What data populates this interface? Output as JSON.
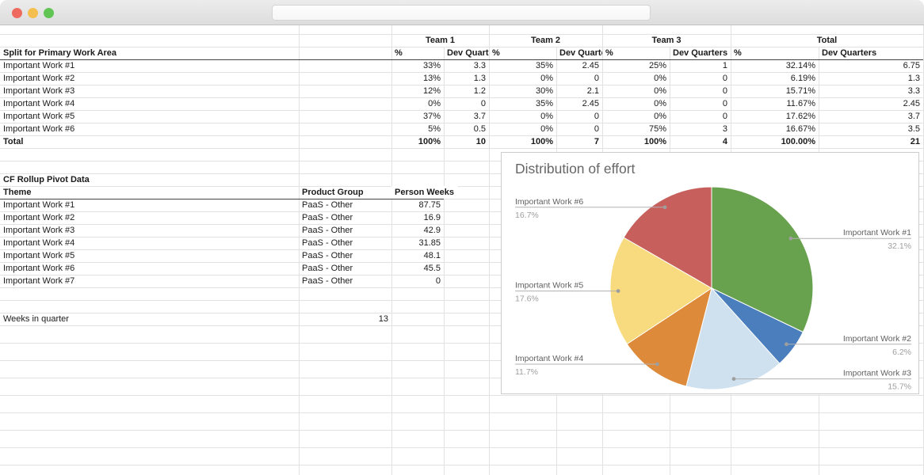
{
  "window": {
    "traffic_lights": {
      "close_color": "#ee6a5e",
      "minimize_color": "#f5bf4f",
      "zoom_color": "#61c554"
    },
    "search_value": ""
  },
  "sheet": {
    "split_table": {
      "row_label_header": "Split for Primary Work Area",
      "teams": [
        "Team 1",
        "Team 2",
        "Team 3",
        "Total"
      ],
      "sub_headers": {
        "pct": "%",
        "dev_quarters": "Dev Quarters"
      },
      "rows": [
        {
          "label": "Important Work #1",
          "cells": [
            "33%",
            "3.3",
            "35%",
            "2.45",
            "25%",
            "1",
            "32.14%",
            "6.75"
          ]
        },
        {
          "label": "Important Work #2",
          "cells": [
            "13%",
            "1.3",
            "0%",
            "0",
            "0%",
            "0",
            "6.19%",
            "1.3"
          ]
        },
        {
          "label": "Important Work #3",
          "cells": [
            "12%",
            "1.2",
            "30%",
            "2.1",
            "0%",
            "0",
            "15.71%",
            "3.3"
          ]
        },
        {
          "label": "Important Work #4",
          "cells": [
            "0%",
            "0",
            "35%",
            "2.45",
            "0%",
            "0",
            "11.67%",
            "2.45"
          ]
        },
        {
          "label": "Important Work #5",
          "cells": [
            "37%",
            "3.7",
            "0%",
            "0",
            "0%",
            "0",
            "17.62%",
            "3.7"
          ]
        },
        {
          "label": "Important Work #6",
          "cells": [
            "5%",
            "0.5",
            "0%",
            "0",
            "75%",
            "3",
            "16.67%",
            "3.5"
          ]
        }
      ],
      "total": {
        "label": "Total",
        "cells": [
          "100%",
          "10",
          "100%",
          "7",
          "100%",
          "4",
          "100.00%",
          "21"
        ]
      }
    },
    "pivot": {
      "section_title": "CF Rollup Pivot Data",
      "headers": [
        "Theme",
        "Product Group",
        "Person Weeks"
      ],
      "rows": [
        {
          "theme": "Important Work #1",
          "group": "PaaS - Other",
          "weeks": "87.75"
        },
        {
          "theme": "Important Work #2",
          "group": "PaaS - Other",
          "weeks": "16.9"
        },
        {
          "theme": "Important Work #3",
          "group": "PaaS - Other",
          "weeks": "42.9"
        },
        {
          "theme": "Important Work #4",
          "group": "PaaS - Other",
          "weeks": "31.85"
        },
        {
          "theme": "Important Work #5",
          "group": "PaaS - Other",
          "weeks": "48.1"
        },
        {
          "theme": "Important Work #6",
          "group": "PaaS - Other",
          "weeks": "45.5"
        },
        {
          "theme": "Important Work #7",
          "group": "PaaS - Other",
          "weeks": "0"
        }
      ]
    },
    "weeks_in_quarter": {
      "label": "Weeks in quarter",
      "value": "13"
    }
  },
  "chart_data": {
    "type": "pie",
    "title": "Distribution of effort",
    "legend_position": "labeled-callouts",
    "slices": [
      {
        "label": "Important Work #1",
        "value": 32.14,
        "display_pct": "32.1%",
        "color": "#69a24f"
      },
      {
        "label": "Important Work #2",
        "value": 6.19,
        "display_pct": "6.2%",
        "color": "#4a7ebd"
      },
      {
        "label": "Important Work #3",
        "value": 15.71,
        "display_pct": "15.7%",
        "color": "#cfe0ef"
      },
      {
        "label": "Important Work #4",
        "value": 11.67,
        "display_pct": "11.7%",
        "color": "#dd8a3b"
      },
      {
        "label": "Important Work #5",
        "value": 17.62,
        "display_pct": "17.6%",
        "color": "#f7db7e"
      },
      {
        "label": "Important Work #6",
        "value": 16.67,
        "display_pct": "16.7%",
        "color": "#c7605c"
      }
    ],
    "label_name_color": "#616161",
    "label_value_color": "#9e9e9e",
    "leader_line_color": "#b0b0b0",
    "title_color": "#666666"
  }
}
